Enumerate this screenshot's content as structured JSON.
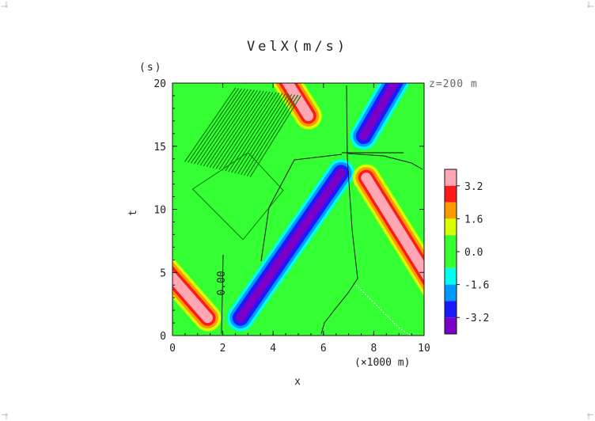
{
  "chart_data": {
    "type": "heatmap",
    "title": "VelX(m/s)",
    "xlabel": "x",
    "ylabel": "t",
    "x_unit": "(×1000 m)",
    "y_unit": "(s)",
    "annotation": "z=200 m",
    "contour_label": "0.00",
    "xlim": [
      0,
      10
    ],
    "ylim": [
      0,
      20
    ],
    "xticks": [
      0,
      2,
      4,
      6,
      8,
      10
    ],
    "yticks": [
      0,
      5,
      10,
      15,
      20
    ],
    "colorbar": {
      "ticks": [
        "3.2",
        "1.6",
        "0.0",
        "-1.6",
        "-3.2"
      ],
      "levels": [
        {
          "color": "#ffa8b4"
        },
        {
          "color": "#ff1a1a"
        },
        {
          "color": "#ff9900"
        },
        {
          "color": "#d7ff00"
        },
        {
          "color": "#33ff33"
        },
        {
          "color": "#33ff33"
        },
        {
          "color": "#00ffee"
        },
        {
          "color": "#0099ff"
        },
        {
          "color": "#1a1aff"
        },
        {
          "color": "#7a00c8"
        }
      ]
    },
    "grid": false
  }
}
